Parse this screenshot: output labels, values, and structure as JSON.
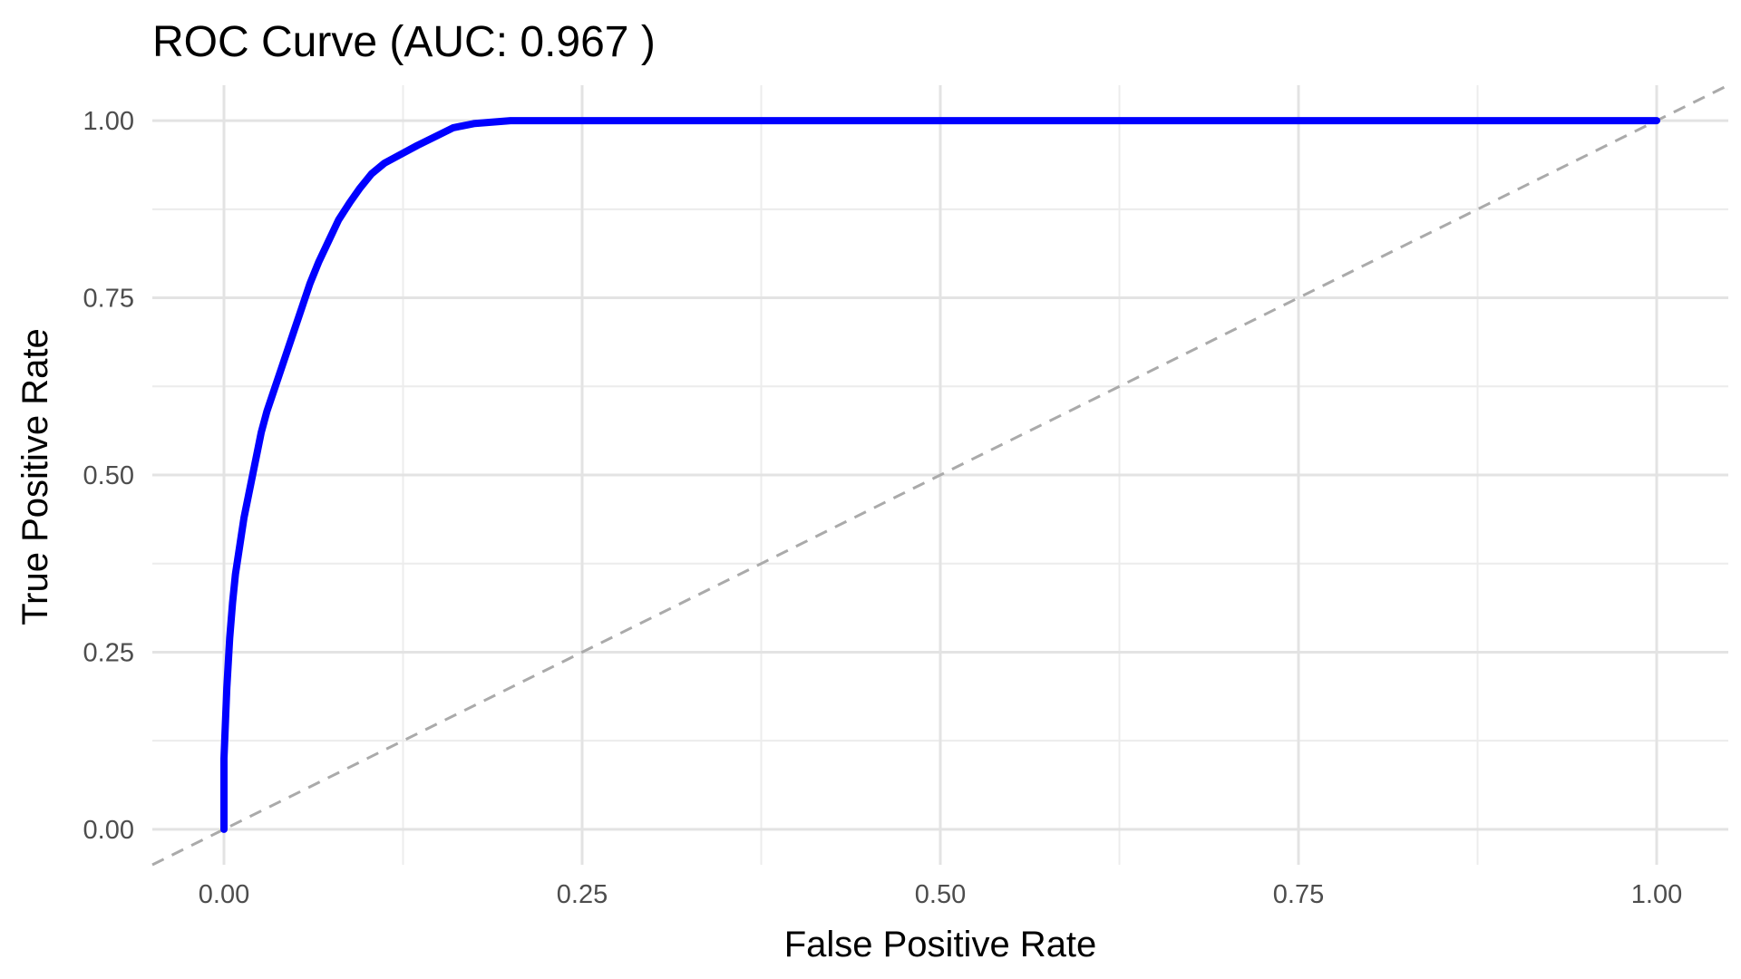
{
  "chart_data": {
    "type": "line",
    "title": "ROC Curve (AUC: 0.967 )",
    "xlabel": "False Positive Rate",
    "ylabel": "True Positive Rate",
    "xlim": [
      -0.05,
      1.05
    ],
    "ylim": [
      -0.05,
      1.05
    ],
    "xticks": [
      0,
      0.25,
      0.5,
      0.75,
      1
    ],
    "yticks": [
      0,
      0.25,
      0.5,
      0.75,
      1
    ],
    "xtick_labels": [
      "0.00",
      "0.25",
      "0.50",
      "0.75",
      "1.00"
    ],
    "ytick_labels": [
      "0.00",
      "0.25",
      "0.50",
      "0.75",
      "1.00"
    ],
    "grid": true,
    "legend": "none",
    "colors": {
      "roc_curve": "#0000ff",
      "reference_line": "#aaaaaa",
      "grid_major": "#e3e3e3",
      "grid_minor": "#ececec",
      "background": "#ffffff"
    },
    "series": [
      {
        "values": [
          [
            0.0,
            0.0
          ],
          [
            0.0,
            0.1
          ],
          [
            0.002,
            0.2
          ],
          [
            0.004,
            0.27
          ],
          [
            0.006,
            0.32
          ],
          [
            0.008,
            0.36
          ],
          [
            0.011,
            0.4
          ],
          [
            0.014,
            0.44
          ],
          [
            0.018,
            0.48
          ],
          [
            0.022,
            0.52
          ],
          [
            0.026,
            0.56
          ],
          [
            0.03,
            0.59
          ],
          [
            0.035,
            0.62
          ],
          [
            0.04,
            0.65
          ],
          [
            0.045,
            0.68
          ],
          [
            0.05,
            0.71
          ],
          [
            0.055,
            0.74
          ],
          [
            0.06,
            0.77
          ],
          [
            0.066,
            0.8
          ],
          [
            0.073,
            0.83
          ],
          [
            0.08,
            0.86
          ],
          [
            0.088,
            0.885
          ],
          [
            0.095,
            0.905
          ],
          [
            0.103,
            0.925
          ],
          [
            0.112,
            0.94
          ],
          [
            0.123,
            0.952
          ],
          [
            0.135,
            0.965
          ],
          [
            0.148,
            0.978
          ],
          [
            0.16,
            0.99
          ],
          [
            0.175,
            0.996
          ],
          [
            0.2,
            1.0
          ],
          [
            1.0,
            1.0
          ]
        ]
      },
      {
        "line_style": "dashed",
        "values": [
          [
            -0.05,
            -0.05
          ],
          [
            1.05,
            1.05
          ]
        ]
      }
    ]
  }
}
